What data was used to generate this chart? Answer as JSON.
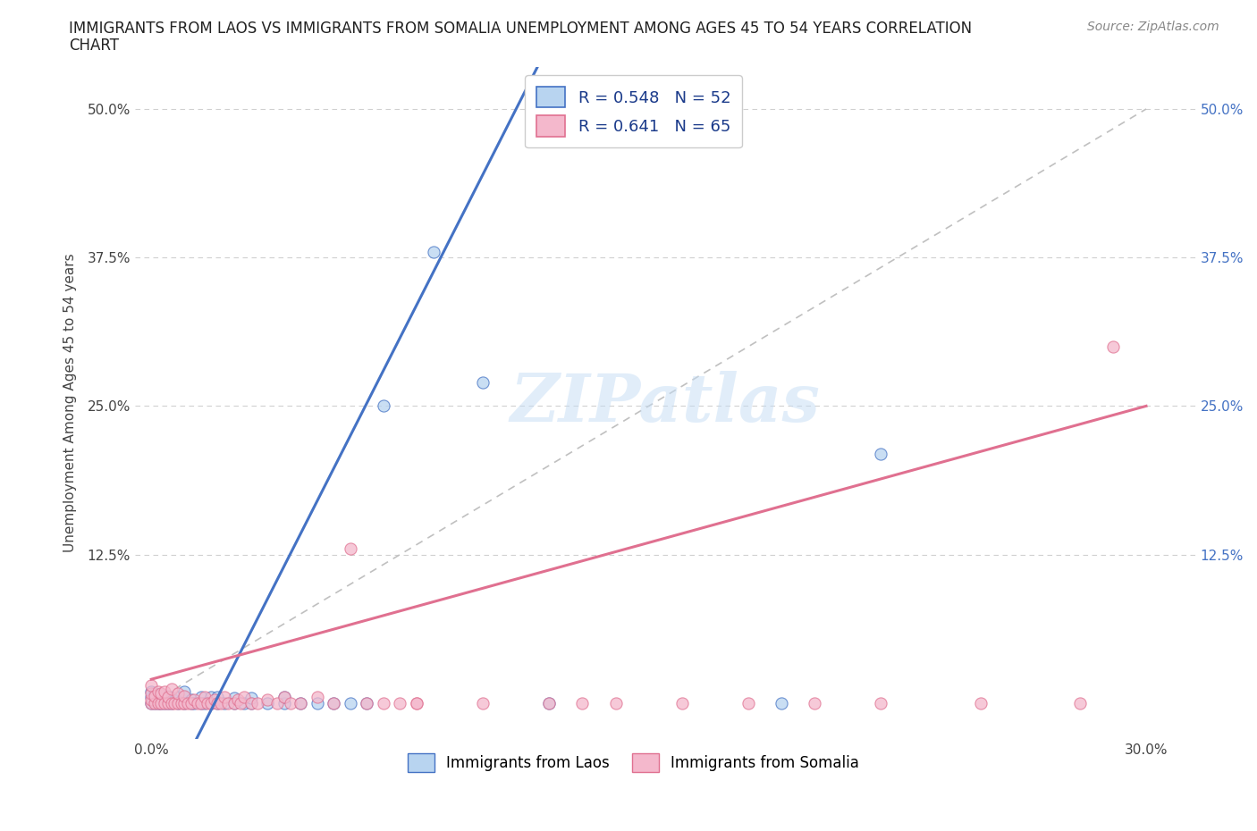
{
  "title_line1": "IMMIGRANTS FROM LAOS VS IMMIGRANTS FROM SOMALIA UNEMPLOYMENT AMONG AGES 45 TO 54 YEARS CORRELATION",
  "title_line2": "CHART",
  "source": "Source: ZipAtlas.com",
  "ylabel_label": "Unemployment Among Ages 45 to 54 years",
  "ytick_values": [
    0.0,
    0.125,
    0.25,
    0.375,
    0.5
  ],
  "ytick_labels_left": [
    "",
    "12.5%",
    "25.0%",
    "37.5%",
    "50.0%"
  ],
  "ytick_labels_right": [
    "",
    "12.5%",
    "25.0%",
    "37.5%",
    "50.0%"
  ],
  "xtick_values": [
    0.0,
    0.3
  ],
  "xtick_labels": [
    "0.0%",
    "30.0%"
  ],
  "xlim": [
    -0.005,
    0.315
  ],
  "ylim": [
    -0.03,
    0.535
  ],
  "legend_laos": "R = 0.548   N = 52",
  "legend_somalia": "R = 0.641   N = 65",
  "color_laos_fill": "#b8d4f0",
  "color_laos_edge": "#4472c4",
  "color_somalia_fill": "#f4b8cc",
  "color_somalia_edge": "#e07090",
  "color_line_laos": "#4472c4",
  "color_line_somalia": "#e07090",
  "color_diag": "#c0c0c0",
  "color_grid": "#d0d0d0",
  "watermark_color": "#c5ddf5",
  "laos_x": [
    0.0,
    0.0,
    0.0,
    0.001,
    0.001,
    0.002,
    0.002,
    0.003,
    0.003,
    0.004,
    0.004,
    0.005,
    0.005,
    0.006,
    0.006,
    0.007,
    0.008,
    0.008,
    0.009,
    0.01,
    0.01,
    0.01,
    0.012,
    0.012,
    0.013,
    0.015,
    0.015,
    0.016,
    0.018,
    0.018,
    0.02,
    0.02,
    0.022,
    0.025,
    0.025,
    0.028,
    0.03,
    0.03,
    0.035,
    0.04,
    0.04,
    0.045,
    0.05,
    0.055,
    0.06,
    0.065,
    0.07,
    0.085,
    0.1,
    0.12,
    0.19,
    0.22
  ],
  "laos_y": [
    0.0,
    0.005,
    0.01,
    0.0,
    0.008,
    0.0,
    0.005,
    0.0,
    0.007,
    0.0,
    0.005,
    0.0,
    0.006,
    0.0,
    0.004,
    0.002,
    0.0,
    0.005,
    0.002,
    0.0,
    0.005,
    0.01,
    0.0,
    0.003,
    0.0,
    0.0,
    0.005,
    0.0,
    0.0,
    0.005,
    0.0,
    0.005,
    0.0,
    0.0,
    0.004,
    0.0,
    0.0,
    0.004,
    0.0,
    0.0,
    0.005,
    0.0,
    0.0,
    0.0,
    0.0,
    0.0,
    0.25,
    0.38,
    0.27,
    0.0,
    0.0,
    0.21
  ],
  "somalia_x": [
    0.0,
    0.0,
    0.0,
    0.0,
    0.001,
    0.001,
    0.002,
    0.002,
    0.003,
    0.003,
    0.004,
    0.004,
    0.005,
    0.005,
    0.006,
    0.006,
    0.007,
    0.008,
    0.008,
    0.009,
    0.01,
    0.01,
    0.011,
    0.012,
    0.013,
    0.014,
    0.015,
    0.016,
    0.017,
    0.018,
    0.019,
    0.02,
    0.021,
    0.022,
    0.023,
    0.025,
    0.026,
    0.027,
    0.028,
    0.03,
    0.032,
    0.035,
    0.038,
    0.04,
    0.042,
    0.045,
    0.05,
    0.055,
    0.06,
    0.065,
    0.07,
    0.075,
    0.08,
    0.1,
    0.12,
    0.14,
    0.16,
    0.18,
    0.2,
    0.22,
    0.25,
    0.28,
    0.08,
    0.13,
    0.29
  ],
  "somalia_y": [
    0.0,
    0.003,
    0.008,
    0.015,
    0.0,
    0.006,
    0.0,
    0.01,
    0.0,
    0.008,
    0.0,
    0.01,
    0.0,
    0.005,
    0.0,
    0.012,
    0.0,
    0.0,
    0.008,
    0.0,
    0.0,
    0.006,
    0.0,
    0.0,
    0.003,
    0.0,
    0.0,
    0.005,
    0.0,
    0.0,
    0.003,
    0.0,
    0.0,
    0.005,
    0.0,
    0.0,
    0.003,
    0.0,
    0.005,
    0.0,
    0.0,
    0.003,
    0.0,
    0.005,
    0.0,
    0.0,
    0.005,
    0.0,
    0.13,
    0.0,
    0.0,
    0.0,
    0.0,
    0.0,
    0.0,
    0.0,
    0.0,
    0.0,
    0.0,
    0.0,
    0.0,
    0.0,
    0.0,
    0.0,
    0.3
  ],
  "laos_trend": [
    0.0,
    0.08,
    0.0,
    0.31
  ],
  "somalia_trend": [
    0.0,
    0.02,
    0.3,
    0.25
  ]
}
